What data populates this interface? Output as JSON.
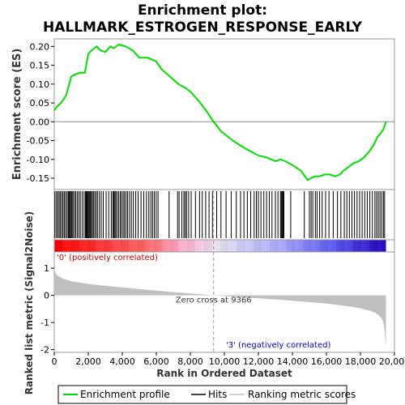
{
  "title_line1": "Enrichment plot:",
  "title_line2": "HALLMARK_ESTROGEN_RESPONSE_EARLY",
  "chart_data": {
    "type": "line",
    "x_label": "Rank in Ordered Dataset",
    "x_ticks": [
      0,
      2000,
      4000,
      6000,
      8000,
      10000,
      12000,
      14000,
      16000,
      18000,
      20000
    ],
    "x_tick_labels": [
      "0",
      "2,000",
      "4,000",
      "6,000",
      "8,000",
      "10,000",
      "12,000",
      "14,000",
      "16,000",
      "18,000",
      "20,000"
    ],
    "xlim": [
      0,
      20000
    ],
    "n_genes": 19500,
    "es_panel": {
      "ylabel": "Enrichment score (ES)",
      "ylim": [
        -0.18,
        0.22
      ],
      "y_ticks": [
        -0.15,
        -0.1,
        -0.05,
        0.0,
        0.05,
        0.1,
        0.15,
        0.2
      ],
      "y_tick_labels": [
        "-0.15",
        "-0.10",
        "-0.05",
        "0.00",
        "0.05",
        "0.10",
        "0.15",
        "0.20"
      ],
      "series_name": "Enrichment profile",
      "color": "#00dd00",
      "x": [
        0,
        150,
        400,
        700,
        1000,
        1200,
        1500,
        1800,
        2000,
        2200,
        2500,
        2700,
        3000,
        3300,
        3500,
        3800,
        4200,
        4600,
        5000,
        5500,
        6000,
        6300,
        6800,
        7300,
        7700,
        8000,
        8500,
        9000,
        9366,
        9800,
        10500,
        11000,
        11600,
        12000,
        12500,
        13000,
        13300,
        13600,
        14000,
        14500,
        14900,
        15100,
        15300,
        15600,
        15900,
        16200,
        16500,
        16800,
        17000,
        17300,
        17600,
        17900,
        18200,
        18500,
        18800,
        19000,
        19200,
        19350,
        19500
      ],
      "y": [
        0.03,
        0.04,
        0.05,
        0.07,
        0.12,
        0.125,
        0.13,
        0.13,
        0.18,
        0.19,
        0.2,
        0.19,
        0.185,
        0.2,
        0.195,
        0.205,
        0.2,
        0.19,
        0.17,
        0.17,
        0.16,
        0.14,
        0.12,
        0.1,
        0.09,
        0.08,
        0.055,
        0.025,
        0.0,
        -0.025,
        -0.05,
        -0.065,
        -0.08,
        -0.09,
        -0.095,
        -0.105,
        -0.1,
        -0.105,
        -0.115,
        -0.13,
        -0.155,
        -0.15,
        -0.145,
        -0.145,
        -0.14,
        -0.14,
        -0.145,
        -0.14,
        -0.13,
        -0.12,
        -0.11,
        -0.105,
        -0.095,
        -0.08,
        -0.06,
        -0.04,
        -0.03,
        -0.02,
        0.0
      ]
    },
    "hits_legend": "Hits",
    "hits": [
      40,
      130,
      210,
      290,
      360,
      450,
      520,
      600,
      680,
      760,
      830,
      880,
      940,
      990,
      1040,
      1100,
      1180,
      1260,
      1350,
      1440,
      1530,
      1640,
      1750,
      1830,
      1880,
      1920,
      1960,
      2010,
      2060,
      2110,
      2170,
      2240,
      2300,
      2380,
      2460,
      2540,
      2650,
      2760,
      2880,
      3050,
      3200,
      3350,
      3440,
      3500,
      3560,
      3620,
      3700,
      3790,
      3880,
      3960,
      4050,
      4130,
      4220,
      4310,
      4420,
      4530,
      4650,
      4790,
      4930,
      5100,
      5260,
      5420,
      5560,
      5680,
      5780,
      5880,
      5990,
      6100,
      6750,
      7250,
      7340,
      7500,
      7620,
      7700,
      7780,
      7900,
      8050,
      8300,
      8540,
      8700,
      8900,
      9100,
      9300,
      9550,
      9800,
      10100,
      10400,
      10700,
      10950,
      11150,
      11350,
      11550,
      11750,
      11880,
      12000,
      12150,
      12320,
      12480,
      12640,
      12800,
      13000,
      13150,
      13300,
      13350,
      13400,
      13450,
      13500,
      13900,
      14700,
      15000,
      15100,
      15200,
      15350,
      15450,
      15600,
      15750,
      15950,
      16150,
      16400,
      16650,
      16850,
      17050,
      17200,
      17350,
      17500,
      17650,
      17800,
      17950,
      18100,
      18250,
      18400,
      18550,
      18700,
      18850,
      18950,
      19050,
      19150,
      19250,
      19350,
      19420
    ],
    "colorbar_labels": {
      "positive": "'0' (positively correlated)",
      "negative": "'3' (negatively correlated)"
    },
    "metric_panel": {
      "ylabel": "Ranked list metric (Signal2Noise)",
      "ylim": [
        -2.1,
        1.6
      ],
      "y_ticks": [
        -2,
        -1,
        0,
        1
      ],
      "y_tick_labels": [
        "-2",
        "-1",
        "0",
        "1"
      ],
      "series_name": "Ranking metric scores",
      "color": "#c0c0c0",
      "x": [
        0,
        50,
        200,
        500,
        1000,
        2000,
        3000,
        4000,
        5000,
        6000,
        7000,
        8000,
        9366,
        10000,
        11000,
        12000,
        13000,
        14000,
        15000,
        16000,
        17000,
        17500,
        18000,
        18500,
        18900,
        19100,
        19250,
        19350,
        19420,
        19480,
        19500
      ],
      "y": [
        1.0,
        0.85,
        0.72,
        0.62,
        0.52,
        0.42,
        0.35,
        0.29,
        0.23,
        0.17,
        0.12,
        0.07,
        0.0,
        -0.03,
        -0.07,
        -0.11,
        -0.15,
        -0.2,
        -0.25,
        -0.3,
        -0.38,
        -0.42,
        -0.48,
        -0.56,
        -0.65,
        -0.75,
        -0.85,
        -1.0,
        -1.3,
        -1.7,
        -2.0
      ],
      "zero_cross_label": "Zero cross at 9366",
      "zero_cross": 9366
    },
    "legend": [
      "Enrichment profile",
      "Hits",
      "Ranking metric scores"
    ]
  }
}
